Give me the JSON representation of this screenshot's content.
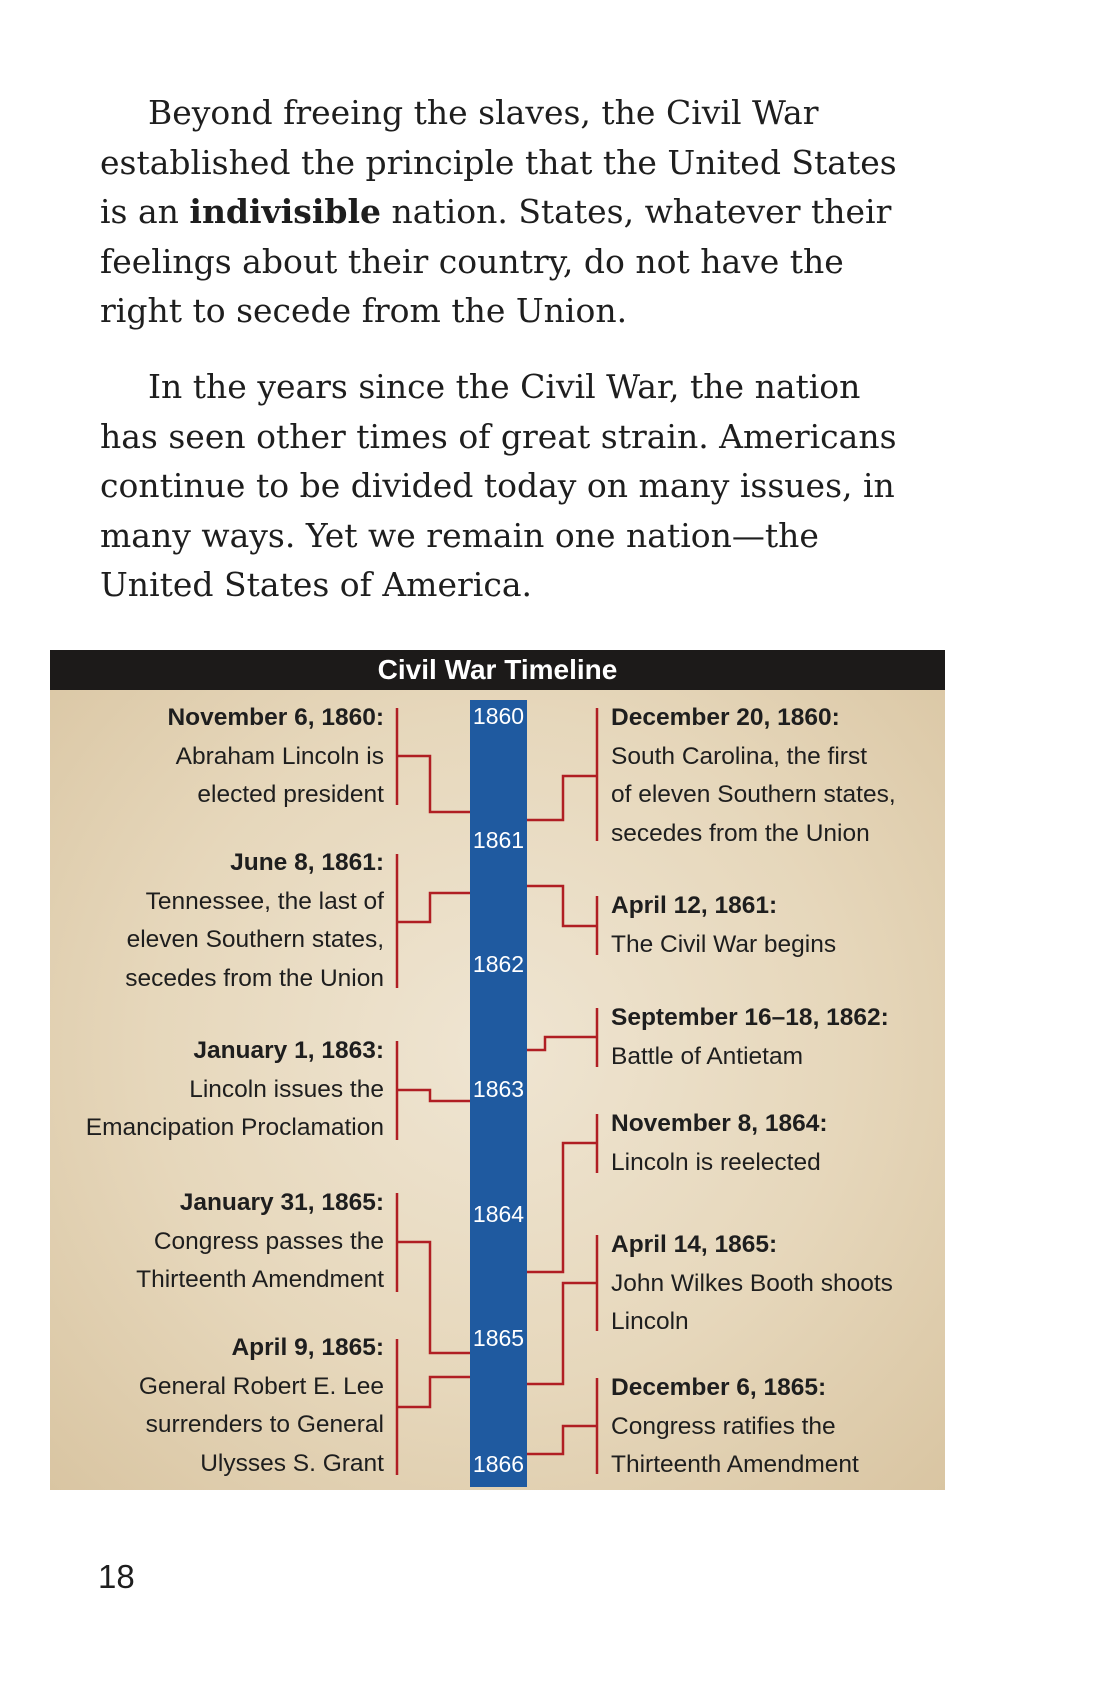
{
  "paragraphs": {
    "p1_before": "Beyond freeing the slaves, the Civil War established the principle that the United States is an ",
    "p1_bold": "indivisible",
    "p1_after": " nation. States, whatever their feelings about their country, do not have the right to secede from the Union.",
    "p2": "In the years since the Civil War, the nation has seen other times of great strain. Americans continue to be divided today on many issues, in many ways. Yet we remain one nation—the United States of America."
  },
  "timeline": {
    "title": "Civil War Timeline",
    "years": [
      "1860",
      "1861",
      "1862",
      "1863",
      "1864",
      "1865",
      "1866"
    ],
    "left_events": [
      {
        "date": "November 6, 1860:",
        "lines": [
          "Abraham Lincoln is",
          "elected president"
        ]
      },
      {
        "date": "June 8, 1861:",
        "lines": [
          "Tennessee, the last of",
          "eleven Southern states,",
          "secedes from the Union"
        ]
      },
      {
        "date": "January 1, 1863:",
        "lines": [
          "Lincoln issues the",
          "Emancipation Proclamation"
        ]
      },
      {
        "date": "January 31, 1865:",
        "lines": [
          "Congress passes the",
          "Thirteenth Amendment"
        ]
      },
      {
        "date": "April 9, 1865:",
        "lines": [
          "General Robert E. Lee",
          "surrenders to General",
          "Ulysses S. Grant"
        ]
      }
    ],
    "right_events": [
      {
        "date": "December 20, 1860:",
        "lines": [
          "South Carolina, the first",
          "of eleven Southern states,",
          "secedes from the Union"
        ]
      },
      {
        "date": "April 12, 1861:",
        "lines": [
          "The Civil War begins"
        ]
      },
      {
        "date": "September 16–18, 1862:",
        "lines": [
          "Battle of Antietam"
        ]
      },
      {
        "date": "November 8, 1864:",
        "lines": [
          "Lincoln is reelected"
        ]
      },
      {
        "date": "April 14, 1865:",
        "lines": [
          "John Wilkes Booth shoots",
          "Lincoln"
        ]
      },
      {
        "date": "December 6, 1865:",
        "lines": [
          "Congress ratifies the",
          "Thirteenth Amendment"
        ]
      }
    ]
  },
  "page_number": "18",
  "colors": {
    "bar": "#1f5aa0",
    "connector": "#b01e23",
    "header": "#1c1a19"
  }
}
